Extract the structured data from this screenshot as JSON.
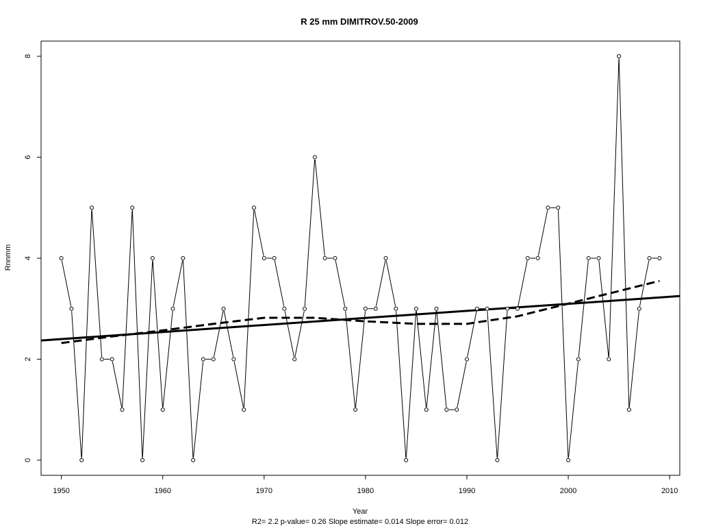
{
  "chart_data": {
    "type": "line",
    "title": "R   25   mm   DIMITROV.50-2009",
    "xlabel": "Year",
    "ylabel": "Rnnmm",
    "stats_note": "R2= 2.2  p-value= 0.26  Slope estimate= 0.014  Slope error= 0.012",
    "xlim": [
      1948,
      2011
    ],
    "ylim": [
      -0.3,
      8.3
    ],
    "x_ticks": [
      1950,
      1960,
      1970,
      1980,
      1990,
      2000,
      2010
    ],
    "y_ticks": [
      0,
      2,
      4,
      6,
      8
    ],
    "grid": false,
    "x": [
      1950,
      1951,
      1952,
      1953,
      1954,
      1955,
      1956,
      1957,
      1958,
      1959,
      1960,
      1961,
      1962,
      1963,
      1964,
      1965,
      1966,
      1967,
      1968,
      1969,
      1970,
      1971,
      1972,
      1973,
      1974,
      1975,
      1976,
      1977,
      1978,
      1979,
      1980,
      1981,
      1982,
      1983,
      1984,
      1985,
      1986,
      1987,
      1988,
      1989,
      1990,
      1991,
      1992,
      1993,
      1994,
      1995,
      1996,
      1997,
      1998,
      1999,
      2000,
      2001,
      2002,
      2003,
      2004,
      2005,
      2006,
      2007,
      2008,
      2009
    ],
    "series": [
      {
        "style": "solid-thin-with-open-circles",
        "values": [
          4,
          3,
          0,
          5,
          2,
          2,
          1,
          5,
          0,
          4,
          1,
          3,
          4,
          0,
          2,
          2,
          3,
          2,
          1,
          5,
          4,
          4,
          3,
          2,
          3,
          6,
          4,
          4,
          3,
          1,
          3,
          3,
          4,
          3,
          0,
          3,
          1,
          3,
          1,
          1,
          2,
          3,
          3,
          0,
          3,
          3,
          4,
          4,
          5,
          5,
          0,
          2,
          4,
          4,
          2,
          8,
          1,
          3,
          4,
          4
        ]
      },
      {
        "style": "solid-thick",
        "x": [
          1948,
          2011
        ],
        "values": [
          2.37,
          3.25
        ]
      },
      {
        "style": "dashed-thick",
        "x": [
          1950,
          1955,
          1960,
          1965,
          1970,
          1975,
          1980,
          1985,
          1990,
          1995,
          2000,
          2005,
          2009
        ],
        "values": [
          2.32,
          2.45,
          2.57,
          2.7,
          2.82,
          2.82,
          2.75,
          2.7,
          2.7,
          2.85,
          3.1,
          3.35,
          3.55
        ]
      }
    ]
  }
}
